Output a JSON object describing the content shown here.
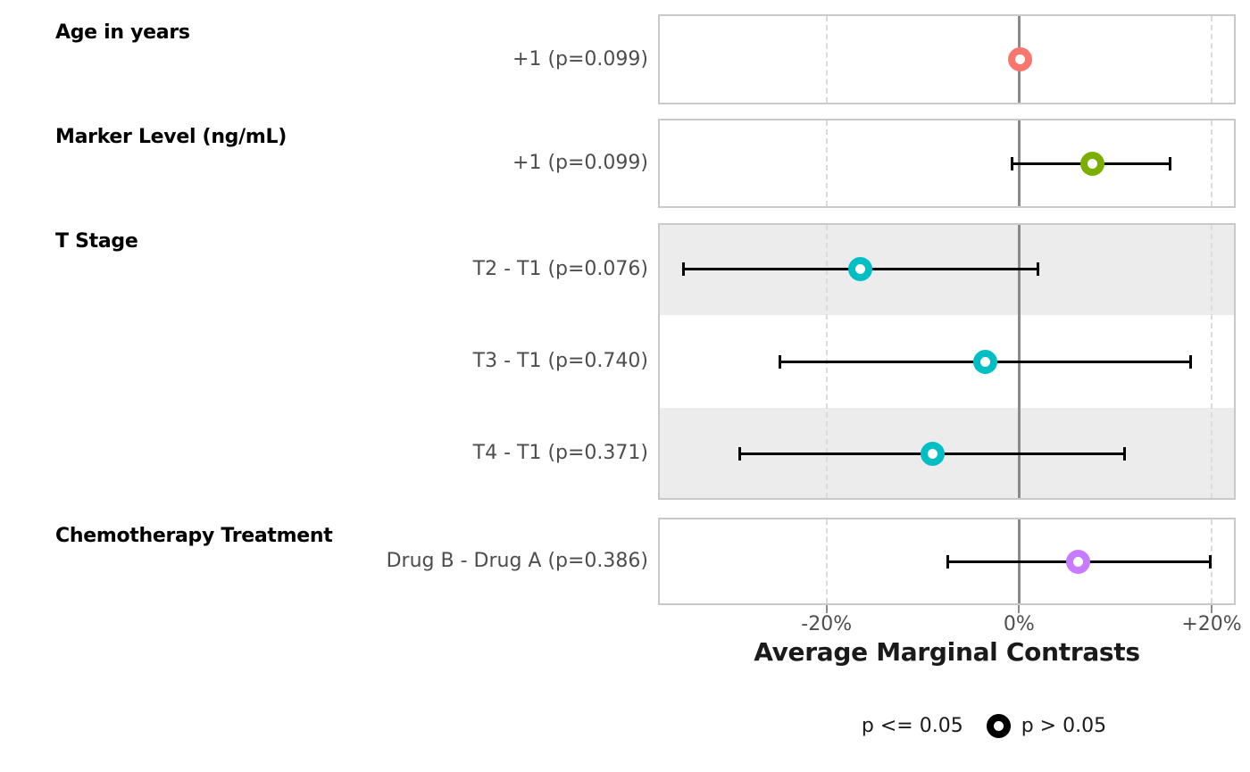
{
  "chart_data": {
    "type": "scatter",
    "subtype": "forest-plot-with-error-bars",
    "title": "",
    "xlabel": "Average Marginal Contrasts",
    "ylabel": "",
    "xlim_pct": [
      -37.5,
      22.5
    ],
    "x_ticks": [
      {
        "label": "-20%",
        "value": -20,
        "line_style": "dashed"
      },
      {
        "label": "0%",
        "value": 0,
        "line_style": "solid"
      },
      {
        "label": "+20%",
        "value": 20,
        "line_style": "dashed"
      }
    ],
    "zero_reference_value": 0,
    "grid": "vertical dashed gridlines at -20% and +20%, solid gray reference line at 0%",
    "legend_position": "bottom",
    "legend": {
      "items": [
        {
          "label": "p <= 0.05",
          "glyph": "blank"
        },
        {
          "label": "p > 0.05",
          "glyph": "open-circle-black"
        }
      ]
    },
    "groups": [
      {
        "heading": "Age in years",
        "striped": false,
        "rows": [
          {
            "label": "+1 (p=0.099)",
            "p_value": 0.099,
            "estimate_pct": 0.1,
            "ci_low_pct": null,
            "ci_high_pct": null,
            "color": "#F8766D"
          }
        ]
      },
      {
        "heading": "Marker Level (ng/mL)",
        "striped": false,
        "rows": [
          {
            "label": "+1 (p=0.099)",
            "p_value": 0.099,
            "estimate_pct": 7.6,
            "ci_low_pct": -0.7,
            "ci_high_pct": 15.7,
            "color": "#7CAE00"
          }
        ]
      },
      {
        "heading": "T Stage",
        "striped": true,
        "rows": [
          {
            "label": "T2 - T1 (p=0.076)",
            "p_value": 0.076,
            "estimate_pct": -16.5,
            "ci_low_pct": -34.9,
            "ci_high_pct": 2.0,
            "color": "#00BFC4"
          },
          {
            "label": "T3 - T1 (p=0.740)",
            "p_value": 0.74,
            "estimate_pct": -3.5,
            "ci_low_pct": -24.8,
            "ci_high_pct": 17.8,
            "color": "#00BFC4"
          },
          {
            "label": "T4 - T1 (p=0.371)",
            "p_value": 0.371,
            "estimate_pct": -9.0,
            "ci_low_pct": -29.0,
            "ci_high_pct": 11.0,
            "color": "#00BFC4"
          }
        ]
      },
      {
        "heading": "Chemotherapy Treatment",
        "striped": false,
        "rows": [
          {
            "label": "Drug B - Drug A (p=0.386)",
            "p_value": 0.386,
            "estimate_pct": 6.1,
            "ci_low_pct": -7.4,
            "ci_high_pct": 19.9,
            "color": "#C77CFF"
          }
        ]
      }
    ],
    "colors": {
      "stripe": "#ECECEC",
      "panel_border": "#C9C9C9",
      "zero_line": "#8A8A8A",
      "dashed_gridline": "#DBDBDB",
      "error_bar": "#000000",
      "heading_text": "#000000",
      "label_text": "#4D4D4D",
      "legend_glyph": "#000000",
      "series_age": "#F8766D",
      "series_marker_level": "#7CAE00",
      "series_t_stage": "#00BFC4",
      "series_chemotherapy": "#C77CFF"
    }
  }
}
